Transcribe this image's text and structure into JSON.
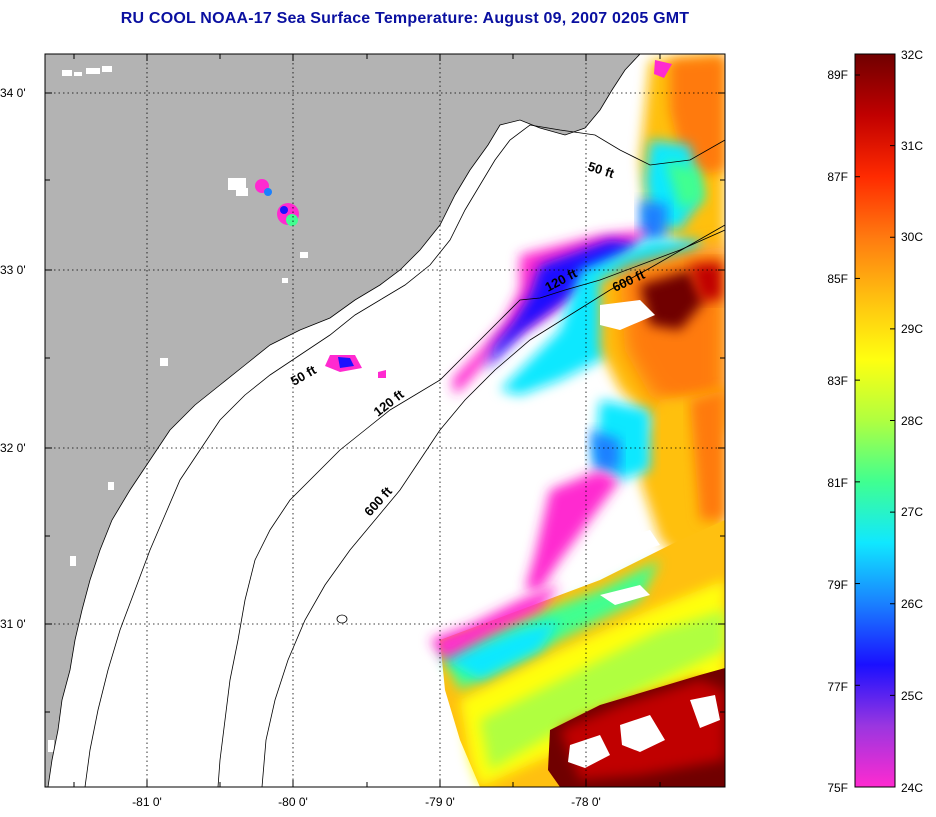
{
  "title": "RU COOL  NOAA-17  Sea Surface Temperature:  August 09, 2007 0205 GMT",
  "latitude_labels": [
    "34 0'",
    "33 0'",
    "32 0'",
    "31 0'"
  ],
  "longitude_labels": [
    "-81 0'",
    "-80 0'",
    "-79 0'",
    "-78 0'"
  ],
  "contour_labels": [
    {
      "text": "50 ft",
      "id": "north"
    },
    {
      "text": "120 ft",
      "id": "north"
    },
    {
      "text": "600 ft",
      "id": "north"
    },
    {
      "text": "50 ft",
      "id": "south"
    },
    {
      "text": "120 ft",
      "id": "south"
    },
    {
      "text": "600 ft",
      "id": "south"
    }
  ],
  "colorbar": {
    "fahrenheit_labels": [
      "89F",
      "87F",
      "85F",
      "83F",
      "81F",
      "79F",
      "77F",
      "75F"
    ],
    "celsius_labels": [
      "32C",
      "31C",
      "30C",
      "29C",
      "28C",
      "27C",
      "26C",
      "25C",
      "24C"
    ],
    "colors": [
      "#ff2ad0",
      "#9a36e0",
      "#1a10ff",
      "#1a80ff",
      "#10e8ff",
      "#40ff90",
      "#b0ff40",
      "#ffff10",
      "#ffc010",
      "#ff7a10",
      "#ff2a00",
      "#c00000",
      "#700000"
    ]
  },
  "colors": {
    "land": "#b3b3b3",
    "ocean": "#ffffff",
    "title": "#0a10a0"
  }
}
